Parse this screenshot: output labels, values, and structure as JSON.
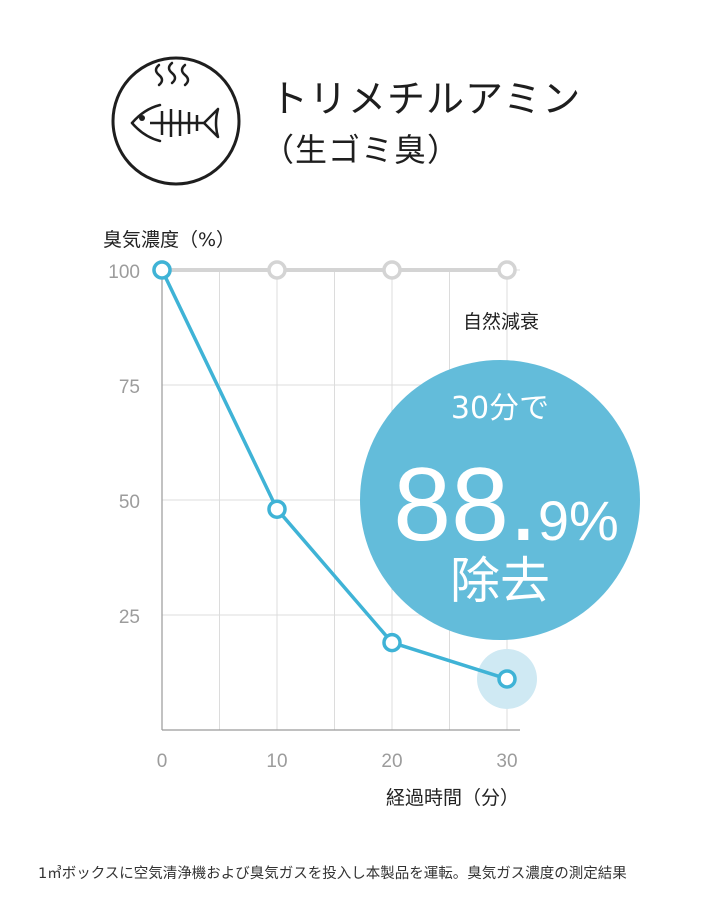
{
  "header": {
    "icon": "fish-bone-odor-icon",
    "title": "トリメチルアミン",
    "subtitle": "（生ゴミ臭）"
  },
  "chart_data": {
    "type": "line",
    "ylabel": "臭気濃度（%）",
    "xlabel": "経過時間（分）",
    "x": [
      0,
      10,
      20,
      30
    ],
    "xlim": [
      0,
      30
    ],
    "ylim": [
      0,
      100
    ],
    "x_ticks": [
      "0",
      "10",
      "20",
      "30"
    ],
    "y_ticks": [
      "25",
      "50",
      "75",
      "100"
    ],
    "grid": true,
    "series": [
      {
        "name": "自然減衰",
        "values": [
          100,
          100,
          100,
          100
        ],
        "color": "#d4d4d4"
      },
      {
        "name": "",
        "values": [
          100,
          48,
          19,
          11.1
        ],
        "color": "#3fb3d6"
      }
    ],
    "annotation": {
      "line1": "30分で",
      "big_number": "88.",
      "small_number": "9%",
      "line3": "除去",
      "color": "#63bcda"
    }
  },
  "footnote": "1㎥ボックスに空気清浄機および臭気ガスを投入し本製品を運転。臭気ガス濃度の測定結果"
}
